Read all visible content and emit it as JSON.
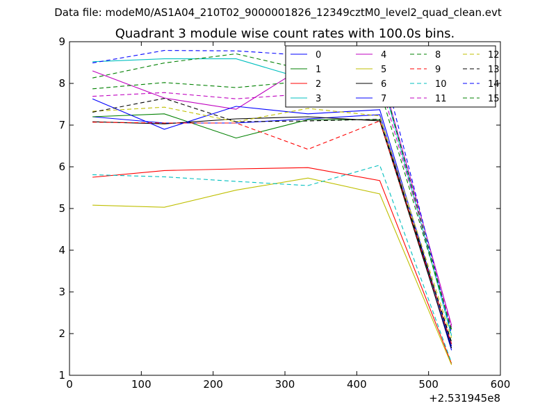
{
  "figure": {
    "suptitle": "Data file: modeM0/AS1A04_210T02_9000001826_12349cztM0_level2_quad_clean.evt"
  },
  "chart_data": {
    "type": "line",
    "title": "Quadrant 3 module wise count rates with 100.0s bins.",
    "xlabel": "",
    "ylabel": "",
    "x_offset_label": "+2.531945e8",
    "xlim": [
      0,
      600
    ],
    "ylim": [
      1,
      9
    ],
    "xticks": [
      0,
      100,
      200,
      300,
      400,
      500,
      600
    ],
    "yticks": [
      1,
      2,
      3,
      4,
      5,
      6,
      7,
      8,
      9
    ],
    "x": [
      32,
      132,
      232,
      332,
      432,
      532
    ],
    "legend_position": "top-right",
    "series": [
      {
        "name": "0",
        "color": "#0000ff",
        "style": "solid",
        "values": [
          7.2,
          7.05,
          7.05,
          7.15,
          7.25,
          1.6
        ]
      },
      {
        "name": "1",
        "color": "#008000",
        "style": "solid",
        "values": [
          7.2,
          7.27,
          6.69,
          7.13,
          7.13,
          1.75
        ]
      },
      {
        "name": "2",
        "color": "#ff0000",
        "style": "solid",
        "values": [
          5.75,
          5.91,
          5.95,
          5.98,
          5.67,
          1.28
        ]
      },
      {
        "name": "3",
        "color": "#00bfbf",
        "style": "solid",
        "values": [
          8.52,
          8.59,
          8.59,
          8.08,
          8.29,
          1.95
        ]
      },
      {
        "name": "4",
        "color": "#bf00bf",
        "style": "solid",
        "values": [
          8.3,
          7.65,
          7.38,
          8.46,
          8.35,
          2.2
        ]
      },
      {
        "name": "5",
        "color": "#bfbf00",
        "style": "solid",
        "values": [
          5.08,
          5.03,
          5.44,
          5.73,
          5.35,
          1.25
        ]
      },
      {
        "name": "6",
        "color": "#000000",
        "style": "solid",
        "values": [
          7.08,
          7.03,
          7.15,
          7.2,
          7.1,
          1.65
        ]
      },
      {
        "name": "7",
        "color": "#0000ff",
        "style": "solid",
        "values": [
          7.63,
          6.9,
          7.45,
          7.27,
          7.37,
          1.7
        ]
      },
      {
        "name": "8",
        "color": "#008000",
        "style": "dashed",
        "values": [
          7.87,
          8.02,
          7.9,
          8.06,
          7.86,
          2.1
        ]
      },
      {
        "name": "9",
        "color": "#ff0000",
        "style": "dashed",
        "values": [
          7.07,
          7.05,
          7.05,
          6.42,
          7.1,
          1.75
        ]
      },
      {
        "name": "10",
        "color": "#00bfbf",
        "style": "dashed",
        "values": [
          5.81,
          5.76,
          5.65,
          5.55,
          6.04,
          1.3
        ]
      },
      {
        "name": "11",
        "color": "#bf00bf",
        "style": "dashed",
        "values": [
          7.69,
          7.78,
          7.63,
          7.75,
          8.05,
          2.15
        ]
      },
      {
        "name": "12",
        "color": "#bfbf00",
        "style": "dashed",
        "values": [
          7.33,
          7.43,
          7.08,
          7.4,
          7.22,
          1.9
        ]
      },
      {
        "name": "13",
        "color": "#000000",
        "style": "dashed",
        "values": [
          7.31,
          7.64,
          7.08,
          7.1,
          7.14,
          1.8
        ]
      },
      {
        "name": "14",
        "color": "#0000ff",
        "style": "dashed",
        "values": [
          8.49,
          8.79,
          8.78,
          8.67,
          8.7,
          2.0
        ]
      },
      {
        "name": "15",
        "color": "#008000",
        "style": "dashed",
        "values": [
          8.13,
          8.49,
          8.71,
          8.31,
          8.33,
          2.05
        ]
      }
    ]
  }
}
